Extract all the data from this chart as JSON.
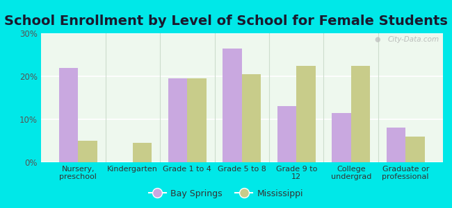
{
  "title": "School Enrollment by Level of School for Female Students",
  "categories": [
    "Nursery,\npreschool",
    "Kindergarten",
    "Grade 1 to 4",
    "Grade 5 to 8",
    "Grade 9 to\n12",
    "College\nundergrad",
    "Graduate or\nprofessional"
  ],
  "bay_springs": [
    22.0,
    0.0,
    19.5,
    26.5,
    13.0,
    11.5,
    8.0
  ],
  "mississippi": [
    5.0,
    4.5,
    19.5,
    20.5,
    22.5,
    22.5,
    6.0
  ],
  "bay_springs_color": "#c9a8e0",
  "mississippi_color": "#c8cc8a",
  "background_color": "#00e8e8",
  "plot_bg_color": "#eef8ee",
  "ylim": [
    0,
    30
  ],
  "yticks": [
    0,
    10,
    20,
    30
  ],
  "ytick_labels": [
    "0%",
    "10%",
    "20%",
    "30%"
  ],
  "bar_width": 0.35,
  "legend_labels": [
    "Bay Springs",
    "Mississippi"
  ],
  "watermark": "City-Data.com",
  "title_fontsize": 14,
  "tick_fontsize": 8.5,
  "xlabel_fontsize": 8
}
